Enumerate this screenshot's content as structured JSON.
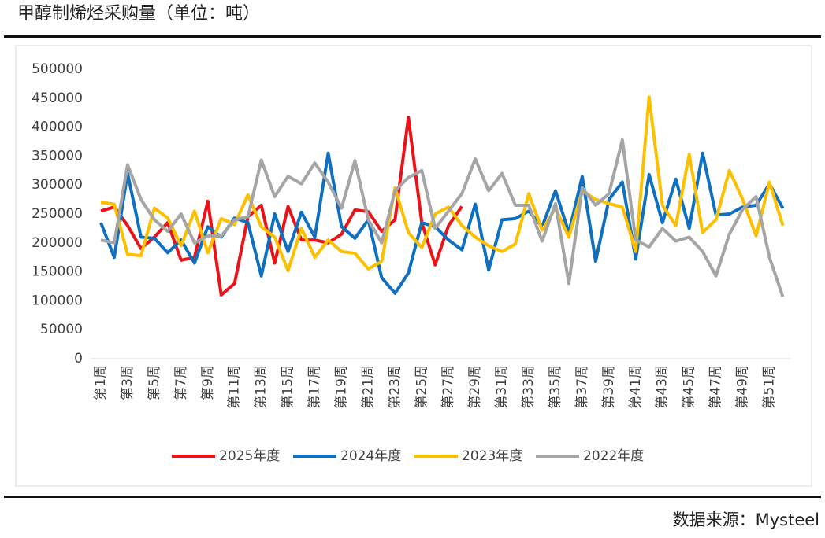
{
  "header": {
    "title": "甲醇制烯烃采购量（单位：吨）"
  },
  "chart_data": {
    "type": "line",
    "categories": [
      "第1周",
      null,
      "第3周",
      null,
      "第5周",
      null,
      "第7周",
      null,
      "第9周",
      null,
      "第11周",
      null,
      "第13周",
      null,
      "第15周",
      null,
      "第17周",
      null,
      "第19周",
      null,
      "第21周",
      null,
      "第23周",
      null,
      "第25周",
      null,
      "第27周",
      null,
      "第29周",
      null,
      "第31周",
      null,
      "第33周",
      null,
      "第35周",
      null,
      "第37周",
      null,
      "第39周",
      null,
      "第41周",
      null,
      "第43周",
      null,
      "第45周",
      null,
      "第47周",
      null,
      "第49周",
      null,
      "第51周",
      null
    ],
    "series": [
      {
        "name": "2025年度",
        "color": "#e8141a",
        "values": [
          255000,
          262000,
          230000,
          190000,
          210000,
          235000,
          170000,
          175000,
          272000,
          110000,
          130000,
          245000,
          265000,
          165000,
          263000,
          205000,
          205000,
          200000,
          215000,
          257000,
          254000,
          220000,
          240000,
          417000,
          235000,
          162000,
          230000,
          263000,
          null,
          null,
          null,
          null,
          null,
          null,
          null,
          null,
          null,
          null,
          null,
          null,
          null,
          null,
          null,
          null,
          null,
          null,
          null,
          null,
          null,
          null,
          null,
          null
        ]
      },
      {
        "name": "2024年度",
        "color": "#0f6fc0",
        "values": [
          235000,
          175000,
          320000,
          210000,
          208000,
          183000,
          205000,
          165000,
          228000,
          210000,
          243000,
          235000,
          143000,
          250000,
          185000,
          253000,
          210000,
          355000,
          228000,
          208000,
          240000,
          140000,
          113000,
          148000,
          235000,
          228000,
          205000,
          188000,
          267000,
          153000,
          240000,
          242000,
          255000,
          228000,
          290000,
          218000,
          315000,
          168000,
          275000,
          305000,
          172000,
          318000,
          235000,
          310000,
          225000,
          355000,
          248000,
          250000,
          262000,
          265000,
          302000,
          260000
        ]
      },
      {
        "name": "2023年度",
        "color": "#fcc000",
        "values": [
          270000,
          267000,
          180000,
          178000,
          260000,
          243000,
          195000,
          255000,
          183000,
          242000,
          232000,
          283000,
          228000,
          210000,
          152000,
          225000,
          175000,
          205000,
          185000,
          182000,
          155000,
          168000,
          295000,
          218000,
          192000,
          250000,
          262000,
          230000,
          210000,
          195000,
          185000,
          198000,
          285000,
          222000,
          260000,
          210000,
          290000,
          275000,
          268000,
          262000,
          185000,
          452000,
          265000,
          230000,
          353000,
          218000,
          240000,
          325000,
          275000,
          212000,
          305000,
          230000
        ]
      },
      {
        "name": "2022年度",
        "color": "#a5a5a5",
        "values": [
          205000,
          200000,
          335000,
          275000,
          240000,
          220000,
          250000,
          200000,
          212000,
          212000,
          240000,
          245000,
          343000,
          280000,
          315000,
          302000,
          338000,
          305000,
          260000,
          342000,
          240000,
          200000,
          290000,
          313000,
          325000,
          225000,
          255000,
          285000,
          345000,
          290000,
          320000,
          265000,
          265000,
          203000,
          268000,
          130000,
          295000,
          265000,
          285000,
          378000,
          205000,
          193000,
          225000,
          203000,
          210000,
          185000,
          143000,
          215000,
          258000,
          280000,
          175000,
          107000
        ]
      }
    ],
    "ylim": [
      0,
      500000
    ],
    "yticks": [
      0,
      50000,
      100000,
      150000,
      200000,
      250000,
      300000,
      350000,
      400000,
      450000,
      500000
    ],
    "legend": "bottom"
  },
  "footer": {
    "source": "数据来源：Mysteel"
  }
}
